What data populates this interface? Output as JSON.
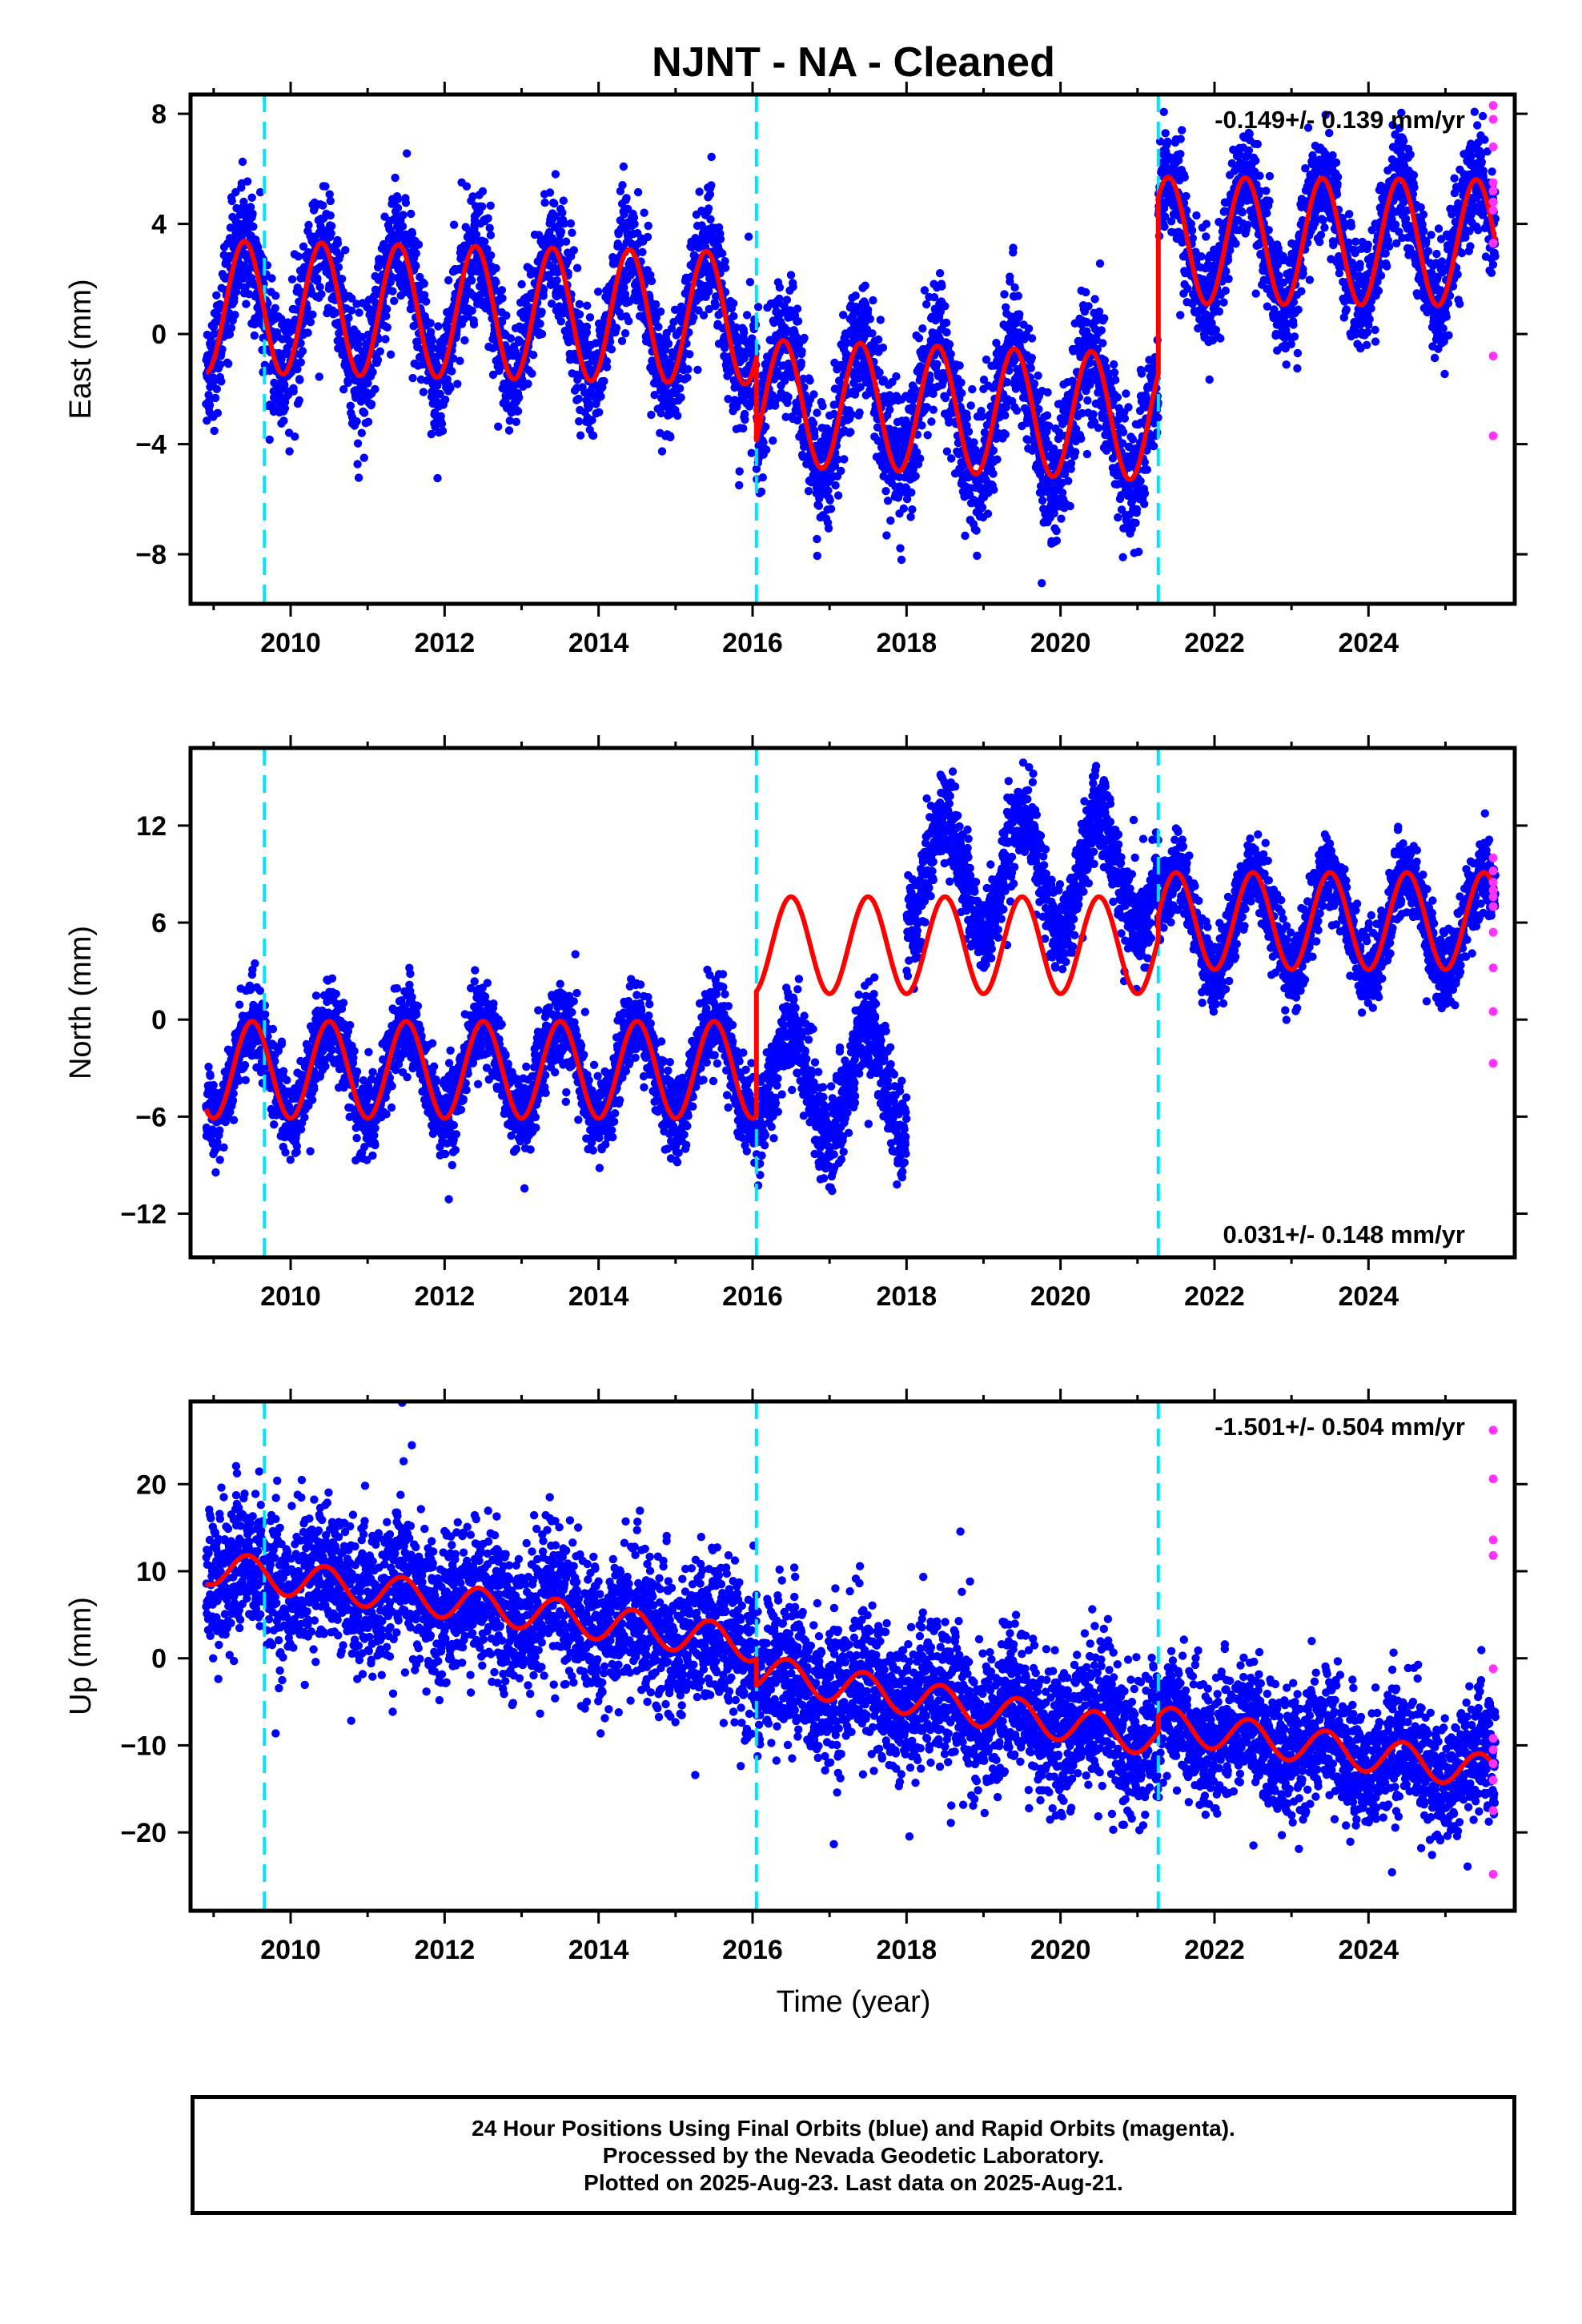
{
  "figure": {
    "title": "NJNT  - NA - Cleaned",
    "xlabel": "Time (year)",
    "colors": {
      "final": "#0000ff",
      "rapid": "#ff33ff",
      "model": "#ff0000",
      "offset": "#00e5ff",
      "axis": "#000000"
    }
  },
  "chart_data": [
    {
      "type": "scatter",
      "panel": "east",
      "ylabel": "East (mm)",
      "xlim": [
        2008.7,
        2025.9
      ],
      "ylim": [
        -9.8,
        8.7
      ],
      "yticks": [
        -8,
        -4,
        0,
        4,
        8
      ],
      "xticks": [
        2010,
        2012,
        2014,
        2016,
        2018,
        2020,
        2022,
        2024
      ],
      "rate_label": "-0.149+/- 0.139 mm/yr",
      "rate_position": "top-right",
      "offsets": [
        2009.66,
        2016.05,
        2021.27
      ],
      "segments": [
        {
          "start": 2008.9,
          "end": 2016.05,
          "base": 1.0,
          "trend": -0.06,
          "amp": 2.4,
          "phase": 0.4,
          "scatter": 1.1
        },
        {
          "start": 2016.05,
          "end": 2021.27,
          "base": -2.5,
          "trend": -0.1,
          "amp": 2.3,
          "phase": 0.4,
          "scatter": 1.2
        },
        {
          "start": 2021.27,
          "end": 2025.65,
          "base": 3.4,
          "trend": -0.02,
          "amp": 2.3,
          "phase": 0.4,
          "scatter": 1.0
        }
      ],
      "rapid": {
        "x": 2025.62,
        "values": [
          8.3,
          7.8,
          6.8,
          5.5,
          5.2,
          4.8,
          4.5,
          3.3,
          -0.8,
          -3.7
        ]
      }
    },
    {
      "type": "scatter",
      "panel": "north",
      "ylabel": "North (mm)",
      "xlim": [
        2008.7,
        2025.9
      ],
      "ylim": [
        -14.7,
        16.8
      ],
      "yticks": [
        -12,
        -6,
        0,
        6,
        12
      ],
      "xticks": [
        2010,
        2012,
        2014,
        2016,
        2018,
        2020,
        2022,
        2024
      ],
      "rate_label": "0.031+/- 0.148 mm/yr",
      "rate_position": "bottom-right",
      "offsets": [
        2009.66,
        2016.05,
        2021.27
      ],
      "segments": [
        {
          "start": 2008.9,
          "end": 2016.05,
          "base": -3.1,
          "trend": 0.0,
          "amp": 3.0,
          "phase": 0.5,
          "scatter": 1.3
        },
        {
          "start": 2016.05,
          "end": 2018.0,
          "base": -4.0,
          "trend": 0.0,
          "amp": 3.5,
          "phase": 0.5,
          "scatter": 1.5
        },
        {
          "start": 2018.0,
          "end": 2021.27,
          "base": 9.0,
          "trend": 0.0,
          "amp": 3.5,
          "phase": 0.5,
          "scatter": 1.4
        },
        {
          "start": 2021.27,
          "end": 2025.65,
          "base": 6.0,
          "trend": 0.0,
          "amp": 3.0,
          "phase": 0.5,
          "scatter": 1.2
        }
      ],
      "model_segments": [
        {
          "start": 2008.9,
          "end": 2016.05,
          "base": -3.1,
          "amp": 3.0
        },
        {
          "start": 2016.05,
          "end": 2021.27,
          "base": 4.6,
          "amp": 3.0
        },
        {
          "start": 2021.27,
          "end": 2025.65,
          "base": 6.1,
          "amp": 3.0
        }
      ],
      "rapid": {
        "x": 2025.62,
        "values": [
          10.0,
          9.2,
          8.5,
          8.0,
          7.6,
          7.0,
          5.4,
          3.2,
          0.5,
          -2.7
        ]
      }
    },
    {
      "type": "scatter",
      "panel": "up",
      "ylabel": "Up (mm)",
      "xlim": [
        2008.7,
        2025.9
      ],
      "ylim": [
        -29,
        29.5
      ],
      "yticks": [
        -20,
        -10,
        0,
        10,
        20
      ],
      "xticks": [
        2010,
        2012,
        2014,
        2016,
        2018,
        2020,
        2022,
        2024
      ],
      "rate_label": "-1.501+/- 0.504 mm/yr",
      "rate_position": "top-right",
      "offsets": [
        2009.66,
        2016.05,
        2021.27
      ],
      "segments": [
        {
          "start": 2008.9,
          "end": 2016.05,
          "base": 10.5,
          "trend": -1.25,
          "amp": 2.0,
          "phase": 0.45,
          "scatter": 4.2
        },
        {
          "start": 2016.05,
          "end": 2021.27,
          "base": -1.5,
          "trend": -1.5,
          "amp": 2.0,
          "phase": 0.45,
          "scatter": 4.2
        },
        {
          "start": 2021.27,
          "end": 2025.65,
          "base": -7.5,
          "trend": -1.3,
          "amp": 2.0,
          "phase": 0.45,
          "scatter": 3.6
        }
      ],
      "rapid": {
        "x": 2025.62,
        "values": [
          26.2,
          20.6,
          13.6,
          11.8,
          -1.2,
          -9.2,
          -10.5,
          -12.1,
          -14.0,
          -17.5,
          -24.8
        ]
      }
    }
  ],
  "footer": {
    "line1": "24 Hour Positions Using Final Orbits (blue) and Rapid Orbits (magenta).",
    "line2": "Processed by the Nevada Geodetic Laboratory.",
    "line3": "Plotted on 2025-Aug-23. Last data on 2025-Aug-21."
  }
}
